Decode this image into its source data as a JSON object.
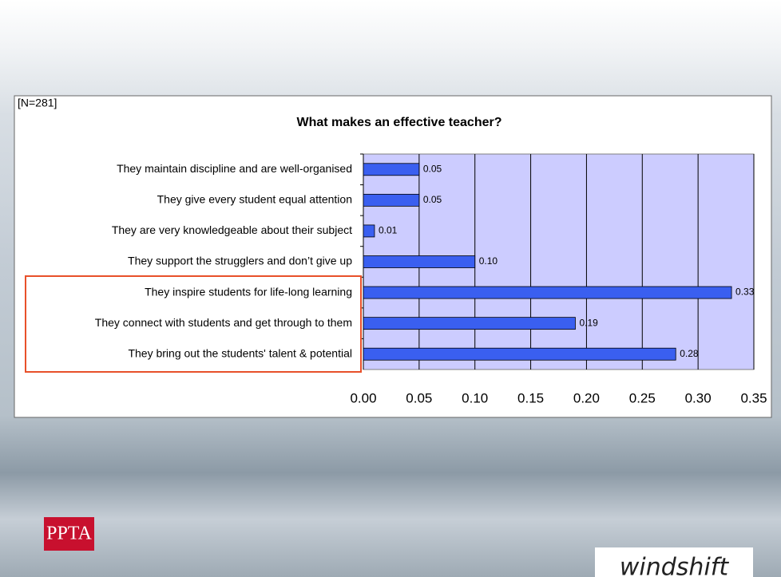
{
  "chart_data": {
    "type": "bar",
    "orientation": "horizontal",
    "title": "What makes an effective teacher?",
    "annotation": "[N=281]",
    "categories": [
      "They maintain discipline and are well-organised",
      "They give every student equal attention",
      "They are very knowledgeable about their subject",
      "They support the strugglers and don’t give up",
      "They inspire students for life-long learning",
      "They connect with students and get through to them",
      "They bring out the students' talent & potential"
    ],
    "values": [
      0.05,
      0.05,
      0.01,
      0.1,
      0.33,
      0.19,
      0.28
    ],
    "value_labels": [
      "0.05",
      "0.05",
      "0.01",
      "0.10",
      "0.33",
      "0.19",
      "0.28"
    ],
    "color": "#3a5ff0",
    "xlim": [
      0,
      0.35
    ],
    "xticks": [
      {
        "value": 0,
        "label": "0.00"
      },
      {
        "value": 0.05,
        "label": "0.05"
      },
      {
        "value": 0.1,
        "label": "0.10"
      },
      {
        "value": 0.15,
        "label": "0.15"
      },
      {
        "value": 0.2,
        "label": "0.20"
      },
      {
        "value": 0.25,
        "label": "0.25"
      },
      {
        "value": 0.3,
        "label": "0.30"
      },
      {
        "value": 0.35,
        "label": "0.35"
      }
    ],
    "grid": true
  },
  "logos": [
    "PPTA",
    "windshift"
  ]
}
